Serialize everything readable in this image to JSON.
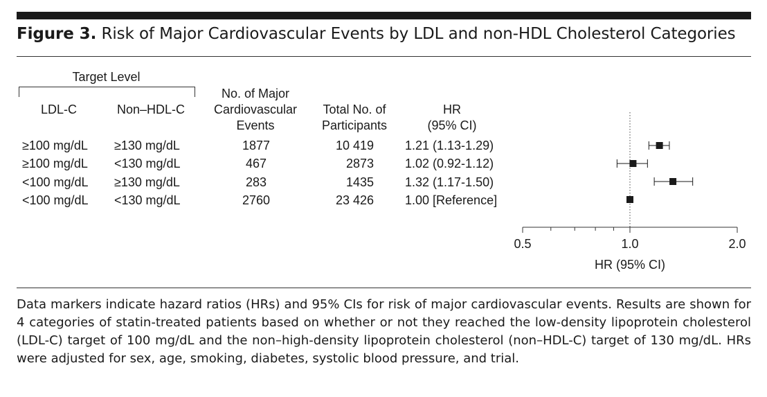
{
  "figure": {
    "label": "Figure 3.",
    "title": "Risk of Major Cardiovascular Events by LDL and non-HDL Cholesterol Categories"
  },
  "table": {
    "group_header": "Target Level",
    "col_ldl": "LDL-C",
    "col_nonhdl": "Non–HDL-C",
    "col_events": [
      "No. of Major",
      "Cardiovascular",
      "Events"
    ],
    "col_participants": [
      "Total No. of",
      "Participants"
    ],
    "col_hr": [
      "HR",
      "(95% CI)"
    ],
    "rows": [
      {
        "ldl": "≥100 mg/dL",
        "nonhdl": "≥130 mg/dL",
        "events": "1877",
        "participants": "10 419",
        "hr_text": "1.21 (1.13-1.29)"
      },
      {
        "ldl": "≥100 mg/dL",
        "nonhdl": "<130 mg/dL",
        "events": "467",
        "participants": "2873",
        "hr_text": "1.02 (0.92-1.12)"
      },
      {
        "ldl": "<100 mg/dL",
        "nonhdl": "≥130 mg/dL",
        "events": "283",
        "participants": "1435",
        "hr_text": "1.32 (1.17-1.50)"
      },
      {
        "ldl": "<100 mg/dL",
        "nonhdl": "<130 mg/dL",
        "events": "2760",
        "participants": "23 426",
        "hr_text": "1.00 [Reference]"
      }
    ]
  },
  "chart_data": {
    "type": "scatter",
    "xscale": "log",
    "xlim": [
      0.5,
      2.0
    ],
    "xticks": [
      0.5,
      1.0,
      2.0
    ],
    "xtick_labels": [
      "0.5",
      "1.0",
      "2.0"
    ],
    "minor_ticks": [
      0.6,
      0.7,
      0.8,
      0.9
    ],
    "reference_line": 1.0,
    "xlabel": "HR (95% CI)",
    "points": [
      {
        "hr": 1.21,
        "lo": 1.13,
        "hi": 1.29
      },
      {
        "hr": 1.02,
        "lo": 0.92,
        "hi": 1.12
      },
      {
        "hr": 1.32,
        "lo": 1.17,
        "hi": 1.5
      },
      {
        "hr": 1.0,
        "lo": 1.0,
        "hi": 1.0
      }
    ]
  },
  "caption": "Data markers indicate hazard ratios (HRs) and 95% CIs for risk of major cardiovascular events. Results are shown for 4 categories of statin-treated patients based on whether or not they reached the low-density lipoprotein cholesterol (LDL-C) target of 100 mg/dL and the non–high-density lipoprotein cholesterol (non–HDL-C) target of 130 mg/dL. HRs were adjusted for sex, age, smoking, diabetes, systolic blood pressure, and trial."
}
